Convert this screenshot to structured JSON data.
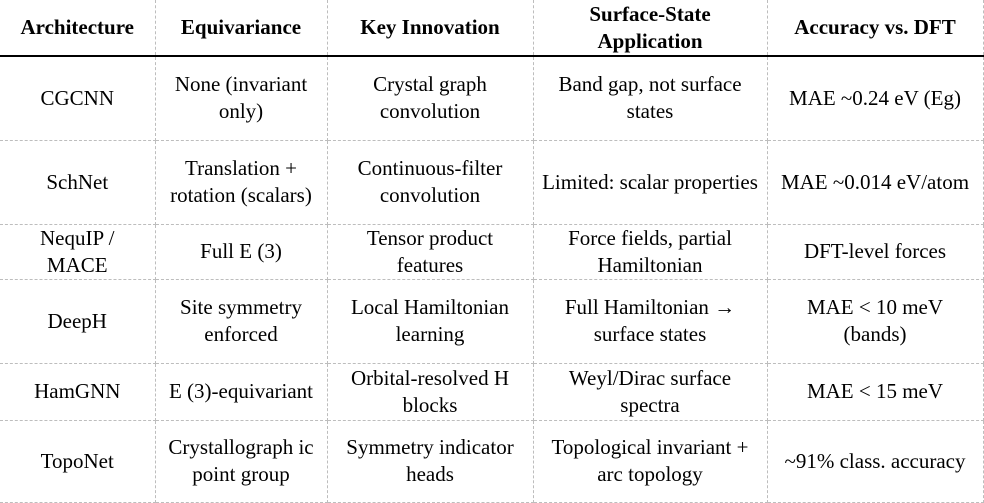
{
  "headers": [
    "Architecture",
    "Equivariance",
    "Key Innovation",
    "Surface-State Application",
    "Accuracy vs. DFT"
  ],
  "rows": [
    [
      "CGCNN",
      "None (invariant only)",
      "Crystal graph convolution",
      "Band gap, not surface states",
      "MAE ~0.24 eV (Eg)"
    ],
    [
      "SchNet",
      "Translation + rotation (scalars)",
      "Continuous-filter convolution",
      "Limited: scalar properties",
      "MAE ~0.014 eV/atom"
    ],
    [
      "NequIP / MACE",
      "Full E (3)",
      "Tensor product features",
      "Force fields, partial Hamiltonian",
      "DFT-level forces"
    ],
    [
      "DeepH",
      "Site symmetry enforced",
      "Local Hamiltonian learning",
      "Full Hamiltonian → surface states",
      "MAE < 10 meV (bands)"
    ],
    [
      "HamGNN",
      "E (3)-equivariant",
      "Orbital-resolved H blocks",
      "Weyl/Dirac surface spectra",
      "MAE < 15 meV"
    ],
    [
      "TopoNet",
      "Crystallograph ic point group",
      "Symmetry indicator heads",
      "Topological invariant + arc topology",
      "~91% class. accuracy"
    ]
  ]
}
